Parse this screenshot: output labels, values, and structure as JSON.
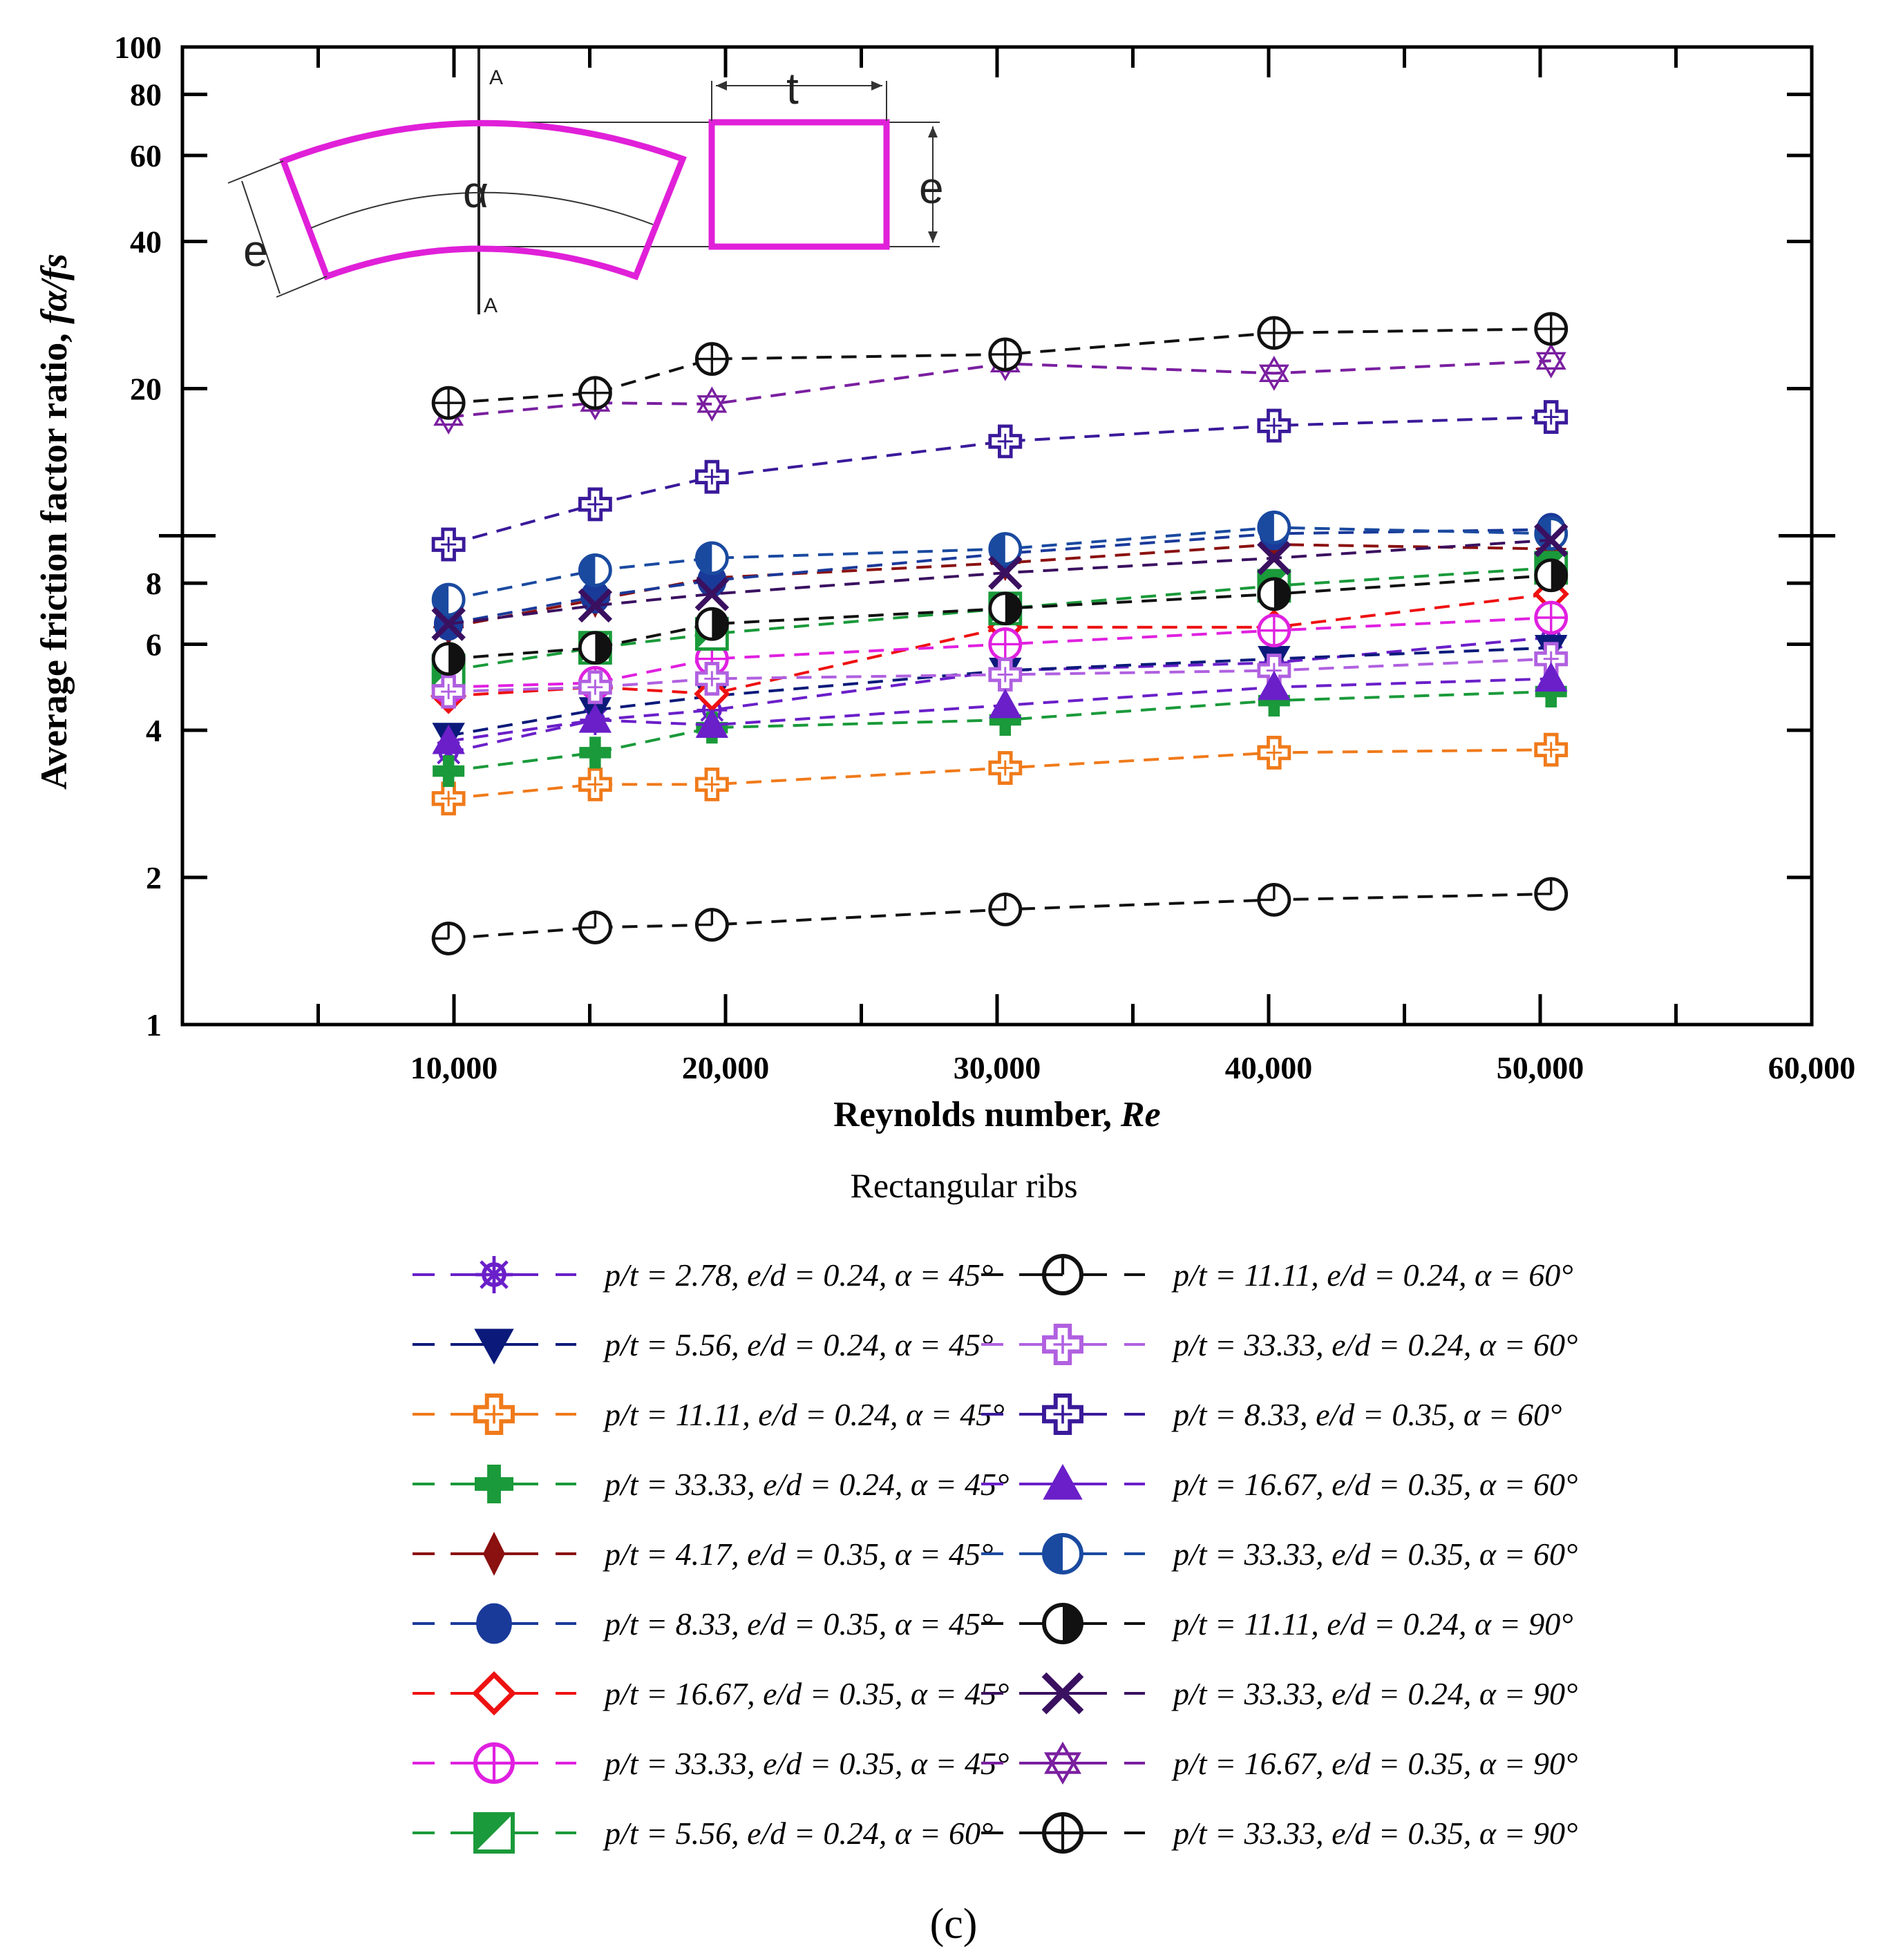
{
  "chart_data": {
    "type": "line",
    "scale": {
      "x": "linear",
      "y": "log"
    },
    "xlim": [
      0,
      60000
    ],
    "ylim": [
      1,
      100
    ],
    "xlabel_text": "Reynolds number, ",
    "xlabel_italic": "Re",
    "ylabel_text": "Average friction factor ratio, ",
    "ylabel_italic": "fα/fs",
    "x_ticks": [
      {
        "value": 10000,
        "label": "10,000"
      },
      {
        "value": 20000,
        "label": "20,000"
      },
      {
        "value": 30000,
        "label": "30,000"
      },
      {
        "value": 40000,
        "label": "40,000"
      },
      {
        "value": 50000,
        "label": "50,000"
      },
      {
        "value": 60000,
        "label": "60,000"
      }
    ],
    "x_minor_ticks": [
      5000,
      15000,
      25000,
      35000,
      45000,
      55000
    ],
    "y_ticks": [
      {
        "value": 1,
        "label": "1"
      },
      {
        "value": 2,
        "label": "2"
      },
      {
        "value": 4,
        "label": "4"
      },
      {
        "value": 6,
        "label": "6"
      },
      {
        "value": 8,
        "label": "8"
      },
      {
        "value": 10,
        "label": ""
      },
      {
        "value": 20,
        "label": "20"
      },
      {
        "value": 40,
        "label": "40"
      },
      {
        "value": 60,
        "label": "60"
      },
      {
        "value": 80,
        "label": "80"
      },
      {
        "value": 100,
        "label": "100"
      }
    ],
    "legend_title": "Rectangular ribs",
    "caption": "(c)",
    "inset_labels": {
      "alpha": "α",
      "e_left": "e",
      "e_right": "e",
      "t": "t",
      "a_top": "A",
      "a_bottom": "A"
    },
    "x": [
      9800,
      15200,
      19500,
      30300,
      40200,
      50400
    ],
    "series": [
      {
        "name": "p/t = 2.78, e/d = 0.24, α = 45°",
        "color": "#6a1fc9",
        "marker": "asterisk-circle",
        "values": [
          3.6,
          4.2,
          4.4,
          5.3,
          5.5,
          6.2
        ]
      },
      {
        "name": "p/t = 5.56, e/d = 0.24, α = 45°",
        "color": "#0b1a7a",
        "marker": "triangle-down",
        "values": [
          3.9,
          4.4,
          4.7,
          5.3,
          5.6,
          5.9
        ]
      },
      {
        "name": "p/t = 11.11, e/d = 0.24, α = 45°",
        "color": "#f07a1a",
        "marker": "cross-open",
        "values": [
          2.9,
          3.1,
          3.1,
          3.35,
          3.6,
          3.65
        ]
      },
      {
        "name": "p/t = 33.33, e/d = 0.24, α = 45°",
        "color": "#1a9a3a",
        "marker": "plus-filled",
        "values": [
          3.3,
          3.6,
          4.05,
          4.2,
          4.6,
          4.8
        ]
      },
      {
        "name": "p/t = 4.17, e/d = 0.35, α = 45°",
        "color": "#8b1010",
        "marker": "diamond-thin",
        "values": [
          6.5,
          7.4,
          8.2,
          8.8,
          9.6,
          9.4
        ]
      },
      {
        "name": "p/t = 8.33, e/d = 0.35, α = 45°",
        "color": "#1a3a9a",
        "marker": "circle-filled",
        "values": [
          6.6,
          7.5,
          8.1,
          9.2,
          10.1,
          10.3
        ]
      },
      {
        "name": "p/t = 16.67, e/d = 0.35, α = 45°",
        "color": "#ee1111",
        "marker": "diamond-open",
        "values": [
          4.7,
          4.9,
          4.75,
          6.5,
          6.5,
          7.6
        ]
      },
      {
        "name": "p/t = 33.33, e/d = 0.35, α = 45°",
        "color": "#e020e0",
        "marker": "circle-crosshair",
        "values": [
          4.9,
          5.0,
          5.6,
          6.0,
          6.4,
          6.8
        ]
      },
      {
        "name": "p/t = 5.56, e/d = 0.24, α = 60°",
        "color": "#1a9a3a",
        "marker": "square-half",
        "values": [
          5.3,
          5.9,
          6.3,
          7.1,
          7.9,
          8.6
        ]
      },
      {
        "name": "p/t = 11.11, e/d = 0.24, α = 60°",
        "color": "#111111",
        "marker": "circle-quarter",
        "values": [
          1.5,
          1.58,
          1.6,
          1.72,
          1.8,
          1.85
        ]
      },
      {
        "name": "p/t = 33.33, e/d = 0.24, α = 60°",
        "color": "#b060e0",
        "marker": "cross-open",
        "values": [
          4.8,
          4.9,
          5.1,
          5.2,
          5.3,
          5.6
        ]
      },
      {
        "name": "p/t = 8.33, e/d = 0.35, α = 60°",
        "color": "#3a1a9a",
        "marker": "cross-open",
        "values": [
          9.6,
          11.6,
          13.2,
          15.6,
          16.8,
          17.5
        ]
      },
      {
        "name": "p/t = 16.67, e/d = 0.35, α = 60°",
        "color": "#6a1fc9",
        "marker": "triangle-up",
        "values": [
          3.8,
          4.2,
          4.1,
          4.5,
          4.9,
          5.1
        ]
      },
      {
        "name": "p/t = 33.33, e/d = 0.35, α = 60°",
        "color": "#1a4aa0",
        "marker": "circle-half",
        "values": [
          7.4,
          8.5,
          9.0,
          9.4,
          10.4,
          10.1
        ]
      },
      {
        "name": "p/t = 11.11, e/d = 0.24, α = 90°",
        "color": "#111111",
        "marker": "circle-half-black",
        "values": [
          5.6,
          5.9,
          6.6,
          7.1,
          7.6,
          8.3
        ]
      },
      {
        "name": "p/t = 33.33, e/d = 0.24, α = 90°",
        "color": "#3a1060",
        "marker": "x-mark",
        "values": [
          6.6,
          7.2,
          7.6,
          8.4,
          9.0,
          9.8
        ]
      },
      {
        "name": "p/t = 16.67, e/d = 0.35, α = 90°",
        "color": "#7a1fa0",
        "marker": "star-of-david",
        "values": [
          17.5,
          18.7,
          18.6,
          22.5,
          21.5,
          22.8
        ]
      },
      {
        "name": "p/t = 33.33, e/d = 0.35, α = 90°",
        "color": "#111111",
        "marker": "circle-plus",
        "values": [
          18.7,
          19.6,
          23.0,
          23.5,
          26.0,
          26.5
        ]
      }
    ]
  }
}
